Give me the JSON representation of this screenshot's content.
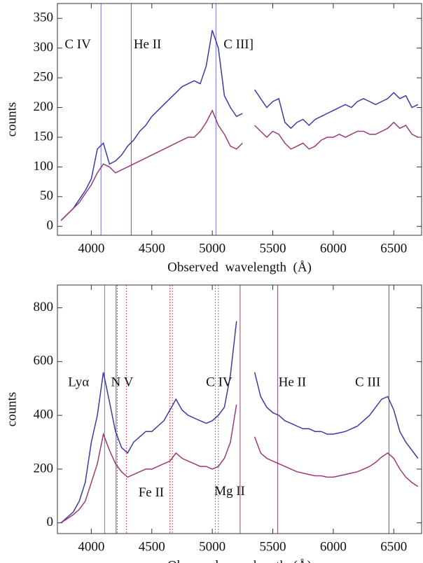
{
  "chart_data": [
    {
      "type": "line",
      "xlabel": "Observed  wavelength  (Å)",
      "ylabel": "counts",
      "x": [
        3750,
        3800,
        3850,
        3900,
        3950,
        4000,
        4050,
        4100,
        4150,
        4200,
        4250,
        4300,
        4350,
        4400,
        4450,
        4500,
        4550,
        4600,
        4650,
        4700,
        4750,
        4800,
        4850,
        4900,
        4950,
        5000,
        5050,
        5100,
        5150,
        5200,
        5250,
        5300,
        5350,
        5400,
        5450,
        5500,
        5550,
        5600,
        5650,
        5700,
        5750,
        5800,
        5850,
        5900,
        5950,
        6000,
        6050,
        6100,
        6150,
        6200,
        6250,
        6300,
        6350,
        6400,
        6450,
        6500,
        6550,
        6600,
        6650,
        6700
      ],
      "series": [
        {
          "color": "#3b3ba3",
          "values": [
            10,
            20,
            30,
            45,
            60,
            80,
            130,
            140,
            105,
            110,
            120,
            135,
            145,
            160,
            170,
            185,
            195,
            205,
            215,
            225,
            235,
            240,
            245,
            240,
            270,
            330,
            300,
            220,
            200,
            185,
            190,
            null,
            230,
            215,
            200,
            210,
            215,
            175,
            165,
            175,
            180,
            170,
            180,
            185,
            190,
            195,
            200,
            205,
            200,
            210,
            215,
            210,
            205,
            210,
            215,
            225,
            215,
            220,
            200,
            205
          ]
        },
        {
          "color": "#9c3a78",
          "values": [
            10,
            20,
            30,
            40,
            55,
            70,
            90,
            105,
            100,
            90,
            95,
            100,
            105,
            110,
            115,
            120,
            125,
            130,
            135,
            140,
            145,
            150,
            150,
            160,
            175,
            195,
            170,
            155,
            135,
            130,
            140,
            null,
            170,
            160,
            150,
            160,
            155,
            140,
            130,
            135,
            140,
            130,
            135,
            145,
            150,
            150,
            155,
            150,
            155,
            160,
            160,
            155,
            155,
            160,
            165,
            175,
            165,
            170,
            155,
            150
          ]
        }
      ],
      "xlim": [
        3720,
        6730
      ],
      "xticks": [
        4000,
        4500,
        5000,
        5500,
        6000,
        6500
      ],
      "ylim": [
        -15,
        375
      ],
      "yticks": [
        0,
        50,
        100,
        150,
        200,
        250,
        300,
        350
      ],
      "lines": [
        {
          "x": 4080,
          "color": "#7070ee",
          "style": "solid"
        },
        {
          "x": 4330,
          "color": "#8a4a7a",
          "style": "solid"
        },
        {
          "x": 5030,
          "color": "#7070ee",
          "style": "solid"
        }
      ],
      "annotations": [
        {
          "text": "C IV",
          "x": 3780,
          "y": 305
        },
        {
          "text": "He II",
          "x": 4350,
          "y": 305
        },
        {
          "text": "C III]",
          "x": 5093,
          "y": 305
        }
      ]
    },
    {
      "type": "line",
      "xlabel": "Observed  wavelength  (Å)",
      "ylabel": "counts",
      "x": [
        3750,
        3800,
        3850,
        3900,
        3950,
        4000,
        4050,
        4100,
        4150,
        4200,
        4250,
        4300,
        4350,
        4400,
        4450,
        4500,
        4550,
        4600,
        4650,
        4700,
        4750,
        4800,
        4850,
        4900,
        4950,
        5000,
        5050,
        5100,
        5150,
        5200,
        5250,
        5300,
        5350,
        5400,
        5450,
        5500,
        5550,
        5600,
        5650,
        5700,
        5750,
        5800,
        5850,
        5900,
        5950,
        6000,
        6050,
        6100,
        6150,
        6200,
        6250,
        6300,
        6350,
        6400,
        6450,
        6500,
        6550,
        6600,
        6650,
        6700
      ],
      "series": [
        {
          "color": "#3b3ba3",
          "values": [
            0,
            20,
            40,
            80,
            150,
            300,
            400,
            560,
            450,
            340,
            280,
            260,
            300,
            320,
            340,
            340,
            360,
            380,
            420,
            460,
            420,
            400,
            390,
            380,
            370,
            380,
            400,
            430,
            550,
            750,
            null,
            null,
            560,
            470,
            430,
            410,
            400,
            380,
            370,
            360,
            350,
            350,
            340,
            340,
            330,
            330,
            335,
            340,
            350,
            360,
            380,
            400,
            430,
            460,
            470,
            420,
            340,
            300,
            270,
            240
          ]
        },
        {
          "color": "#9c3a78",
          "values": [
            0,
            15,
            30,
            50,
            80,
            150,
            220,
            330,
            270,
            220,
            190,
            170,
            180,
            190,
            200,
            200,
            210,
            220,
            230,
            260,
            240,
            230,
            220,
            210,
            210,
            200,
            210,
            240,
            300,
            440,
            null,
            null,
            320,
            260,
            240,
            230,
            220,
            210,
            200,
            190,
            185,
            180,
            175,
            175,
            170,
            170,
            175,
            180,
            185,
            190,
            200,
            210,
            225,
            245,
            260,
            240,
            200,
            170,
            150,
            135
          ]
        }
      ],
      "xlim": [
        3720,
        6730
      ],
      "xticks": [
        4000,
        4500,
        5000,
        5500,
        6000,
        6500
      ],
      "ylim": [
        -40,
        885
      ],
      "yticks": [
        0,
        200,
        400,
        600,
        800
      ],
      "lines": [
        {
          "x": 4110,
          "color": "#7070ee",
          "style": "solid"
        },
        {
          "x": 4205,
          "color": "#8a4a7a",
          "style": "solid"
        },
        {
          "x": 4215,
          "color": "#e05050",
          "style": "dotted"
        },
        {
          "x": 4290,
          "color": "#e05050",
          "style": "dotted"
        },
        {
          "x": 4650,
          "color": "#e05050",
          "style": "dotted"
        },
        {
          "x": 4670,
          "color": "#e05050",
          "style": "dotted"
        },
        {
          "x": 5025,
          "color": "#e05050",
          "style": "dotted"
        },
        {
          "x": 5050,
          "color": "#e05050",
          "style": "dotted"
        },
        {
          "x": 5230,
          "color": "#8a4a7a",
          "style": "solid"
        },
        {
          "x": 5540,
          "color": "#8a4a7a",
          "style": "solid"
        },
        {
          "x": 6460,
          "color": "#8a4a7a",
          "style": "solid"
        }
      ],
      "annotations": [
        {
          "text": "Lyα",
          "x": 3808,
          "y": 520
        },
        {
          "text": "N V",
          "x": 4163,
          "y": 520
        },
        {
          "text": "Fe II",
          "x": 4390,
          "y": 109
        },
        {
          "text": "C IV",
          "x": 4948,
          "y": 520
        },
        {
          "text": "Mg II",
          "x": 5017,
          "y": 115
        },
        {
          "text": "He II",
          "x": 5547,
          "y": 520
        },
        {
          "text": "C III",
          "x": 6180,
          "y": 520
        }
      ]
    }
  ]
}
